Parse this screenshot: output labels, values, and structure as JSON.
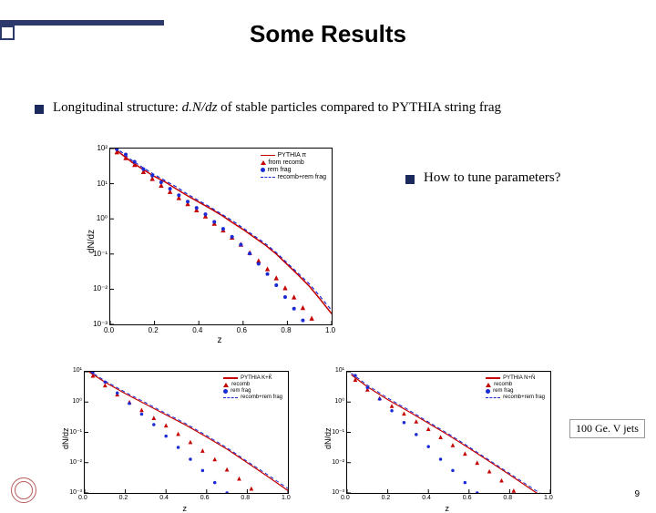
{
  "title": {
    "text": "Some Results",
    "fontsize": 26,
    "color": "#000000"
  },
  "bullet1": {
    "prefix": "Longitudinal structure: ",
    "italic": "d.N/dz",
    "suffix": " of stable particles compared to PYTHIA string frag",
    "fontsize": 15
  },
  "bullet2": {
    "text": "How to tune parameters?",
    "fontsize": 15
  },
  "note": {
    "text": "100 Ge. V jets",
    "fontsize": 12
  },
  "page_number": "9",
  "chart_common": {
    "ylabel": "dN/dz",
    "xlabel": "z",
    "xlim": [
      0.0,
      1.0
    ],
    "xticks": [
      0.0,
      0.2,
      0.4,
      0.6,
      0.8,
      1.0
    ],
    "xticklabels": [
      "0.0",
      "0.2",
      "0.4",
      "0.6",
      "0.8",
      "1.0"
    ],
    "yscale": "log",
    "axis_color": "#000000",
    "background_color": "#ffffff"
  },
  "chart_main": {
    "ylim_exp": [
      -3,
      2
    ],
    "yticks_exp": [
      -3,
      -2,
      -1,
      0,
      1,
      2
    ],
    "yticklabels": [
      "10⁻³",
      "10⁻²",
      "10⁻¹",
      "10⁰",
      "10¹",
      "10²"
    ],
    "legend_items": [
      {
        "label": "PYTHIA π",
        "color": "#c40000",
        "style": "line"
      },
      {
        "label": "from recomb",
        "color": "#c40000",
        "style": "triangle"
      },
      {
        "label": "rem frag",
        "color": "#1a2ad4",
        "style": "circle"
      },
      {
        "label": "recomb+rem frag",
        "color": "#1a2ad4",
        "style": "dashed"
      }
    ],
    "series": [
      {
        "name": "pythia_pi",
        "type": "line",
        "color": "#c40000",
        "line_width": 1.5,
        "x": [
          0.02,
          0.05,
          0.1,
          0.15,
          0.2,
          0.25,
          0.3,
          0.35,
          0.4,
          0.45,
          0.5,
          0.55,
          0.6,
          0.65,
          0.7,
          0.75,
          0.8,
          0.85,
          0.9,
          0.95,
          1.0
        ],
        "y": [
          100,
          70,
          40,
          25,
          16,
          11,
          7.0,
          4.5,
          3.0,
          2.0,
          1.3,
          0.8,
          0.5,
          0.3,
          0.18,
          0.1,
          0.05,
          0.025,
          0.012,
          0.005,
          0.002
        ]
      },
      {
        "name": "recomb_rem_frag",
        "type": "dashed",
        "color": "#1a2ad4",
        "line_width": 1.2,
        "x": [
          0.02,
          0.05,
          0.1,
          0.15,
          0.2,
          0.25,
          0.3,
          0.35,
          0.4,
          0.45,
          0.5,
          0.55,
          0.6,
          0.65,
          0.7,
          0.75,
          0.8,
          0.85,
          0.9,
          0.95,
          1.0
        ],
        "y": [
          110,
          80,
          45,
          28,
          18,
          12,
          8.0,
          5.0,
          3.3,
          2.2,
          1.4,
          0.9,
          0.55,
          0.33,
          0.2,
          0.11,
          0.055,
          0.028,
          0.014,
          0.006,
          0.0025
        ]
      },
      {
        "name": "from_recomb",
        "type": "triangle",
        "color": "#c40000",
        "marker_size": 4,
        "x": [
          0.03,
          0.07,
          0.11,
          0.15,
          0.19,
          0.23,
          0.27,
          0.31,
          0.35,
          0.39,
          0.43,
          0.47,
          0.51,
          0.55,
          0.59,
          0.63,
          0.67,
          0.71,
          0.75,
          0.79,
          0.83,
          0.87,
          0.91,
          0.95
        ],
        "y": [
          80,
          55,
          35,
          22,
          14,
          9,
          6,
          4,
          2.7,
          1.8,
          1.2,
          0.75,
          0.48,
          0.3,
          0.19,
          0.11,
          0.065,
          0.038,
          0.021,
          0.011,
          0.006,
          0.003,
          0.0015,
          0.0008
        ]
      },
      {
        "name": "rem_frag",
        "type": "circle",
        "color": "#1a2ad4",
        "marker_size": 4,
        "x": [
          0.03,
          0.07,
          0.11,
          0.15,
          0.19,
          0.23,
          0.27,
          0.31,
          0.35,
          0.39,
          0.43,
          0.47,
          0.51,
          0.55,
          0.59,
          0.63,
          0.67,
          0.71,
          0.75,
          0.79,
          0.83,
          0.87,
          0.91,
          0.95
        ],
        "y": [
          95,
          68,
          42,
          26,
          17,
          11,
          7.2,
          4.7,
          3.1,
          2.05,
          1.35,
          0.82,
          0.52,
          0.31,
          0.185,
          0.103,
          0.053,
          0.027,
          0.013,
          0.006,
          0.0028,
          0.0013,
          0.0007,
          0.0004
        ]
      }
    ]
  },
  "chart_bl": {
    "ylim_exp": [
      -3,
      1
    ],
    "yticks_exp": [
      -3,
      -2,
      -1,
      0,
      1
    ],
    "yticklabels": [
      "10⁻³",
      "10⁻²",
      "10⁻¹",
      "10⁰",
      "10¹"
    ],
    "legend_items": [
      {
        "label": "PYTHIA K+K̄",
        "color": "#c40000",
        "style": "line"
      },
      {
        "label": "recomb",
        "color": "#c40000",
        "style": "triangle"
      },
      {
        "label": "rem frag",
        "color": "#1a2ad4",
        "style": "circle"
      },
      {
        "label": "recomb+rem frag",
        "color": "#1a2ad4",
        "style": "dashed"
      }
    ],
    "series": [
      {
        "name": "pythia_K",
        "type": "line",
        "color": "#c40000",
        "line_width": 1.2,
        "x": [
          0.02,
          0.1,
          0.2,
          0.3,
          0.4,
          0.5,
          0.6,
          0.7,
          0.8,
          0.9,
          1.0
        ],
        "y": [
          10,
          4.5,
          1.9,
          0.85,
          0.38,
          0.17,
          0.07,
          0.028,
          0.01,
          0.0035,
          0.0012
        ]
      },
      {
        "name": "recomb_rem_frag_K",
        "type": "dashed",
        "color": "#1a2ad4",
        "line_width": 1.0,
        "x": [
          0.02,
          0.1,
          0.2,
          0.3,
          0.4,
          0.5,
          0.6,
          0.7,
          0.8,
          0.9,
          1.0
        ],
        "y": [
          11,
          5.0,
          2.1,
          0.95,
          0.42,
          0.19,
          0.078,
          0.031,
          0.011,
          0.004,
          0.0014
        ]
      },
      {
        "name": "recomb_K",
        "type": "triangle",
        "color": "#c40000",
        "marker_size": 3.5,
        "x": [
          0.04,
          0.1,
          0.16,
          0.22,
          0.28,
          0.34,
          0.4,
          0.46,
          0.52,
          0.58,
          0.64,
          0.7,
          0.76,
          0.82,
          0.88,
          0.94
        ],
        "y": [
          7.5,
          3.6,
          1.8,
          1.0,
          0.55,
          0.3,
          0.17,
          0.09,
          0.048,
          0.025,
          0.013,
          0.006,
          0.003,
          0.0014,
          0.0007,
          0.0004
        ]
      },
      {
        "name": "rem_frag_K",
        "type": "circle",
        "color": "#1a2ad4",
        "marker_size": 3.5,
        "x": [
          0.04,
          0.1,
          0.16,
          0.22,
          0.28,
          0.34,
          0.4,
          0.46,
          0.52,
          0.58,
          0.64,
          0.7,
          0.76,
          0.82,
          0.88,
          0.94
        ],
        "y": [
          9.5,
          4.6,
          2.0,
          0.9,
          0.4,
          0.18,
          0.075,
          0.032,
          0.013,
          0.0055,
          0.0022,
          0.001,
          0.0005,
          0.0003,
          0.0002,
          0.0001
        ]
      }
    ]
  },
  "chart_br": {
    "ylim_exp": [
      -3,
      1
    ],
    "yticks_exp": [
      -3,
      -2,
      -1,
      0,
      1
    ],
    "yticklabels": [
      "10⁻³",
      "10⁻²",
      "10⁻¹",
      "10⁰",
      "10¹"
    ],
    "legend_items": [
      {
        "label": "PYTHIA N+N̄",
        "color": "#c40000",
        "style": "line"
      },
      {
        "label": "recomb",
        "color": "#c40000",
        "style": "triangle"
      },
      {
        "label": "rem frag",
        "color": "#1a2ad4",
        "style": "circle"
      },
      {
        "label": "recomb+rem frag",
        "color": "#1a2ad4",
        "style": "dashed"
      }
    ],
    "series": [
      {
        "name": "pythia_N",
        "type": "line",
        "color": "#c40000",
        "line_width": 1.2,
        "x": [
          0.02,
          0.1,
          0.2,
          0.3,
          0.4,
          0.5,
          0.6,
          0.7,
          0.8,
          0.9,
          1.0
        ],
        "y": [
          8,
          3.2,
          1.2,
          0.5,
          0.2,
          0.08,
          0.03,
          0.011,
          0.004,
          0.0014,
          0.0005
        ]
      },
      {
        "name": "recomb_rem_frag_N",
        "type": "dashed",
        "color": "#1a2ad4",
        "line_width": 1.0,
        "x": [
          0.02,
          0.1,
          0.2,
          0.3,
          0.4,
          0.5,
          0.6,
          0.7,
          0.8,
          0.9,
          1.0
        ],
        "y": [
          9,
          3.6,
          1.35,
          0.56,
          0.22,
          0.088,
          0.033,
          0.012,
          0.0044,
          0.0016,
          0.0006
        ]
      },
      {
        "name": "recomb_N",
        "type": "triangle",
        "color": "#c40000",
        "marker_size": 3.5,
        "x": [
          0.04,
          0.1,
          0.16,
          0.22,
          0.28,
          0.34,
          0.4,
          0.46,
          0.52,
          0.58,
          0.64,
          0.7,
          0.76,
          0.82,
          0.88,
          0.94
        ],
        "y": [
          5.5,
          2.6,
          1.35,
          0.75,
          0.42,
          0.23,
          0.13,
          0.07,
          0.038,
          0.02,
          0.01,
          0.0052,
          0.0026,
          0.0012,
          0.0006,
          0.0003
        ]
      },
      {
        "name": "rem_frag_N",
        "type": "circle",
        "color": "#1a2ad4",
        "marker_size": 3.5,
        "x": [
          0.04,
          0.1,
          0.16,
          0.22,
          0.28,
          0.34,
          0.4,
          0.46,
          0.52,
          0.58,
          0.64,
          0.7,
          0.76,
          0.82,
          0.88,
          0.94
        ],
        "y": [
          7.5,
          3.0,
          1.25,
          0.52,
          0.21,
          0.085,
          0.034,
          0.013,
          0.0055,
          0.0022,
          0.001,
          0.0005,
          0.00025,
          0.00015,
          0.0001,
          0.0001
        ]
      }
    ]
  }
}
